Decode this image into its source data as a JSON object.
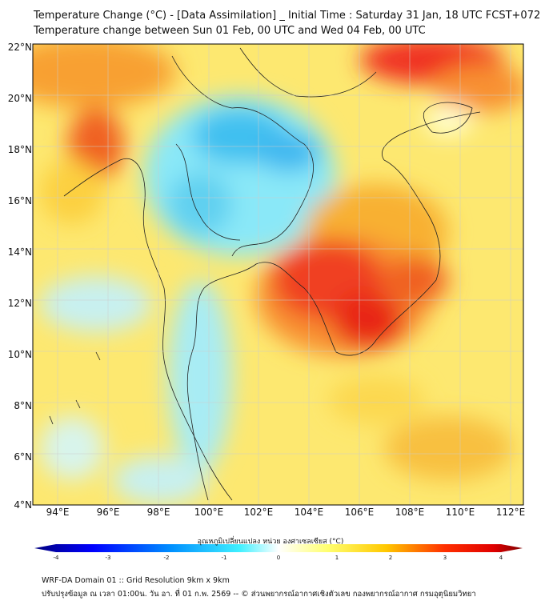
{
  "title": {
    "line1": "Temperature Change (°C) - [Data Assimilation] _ Initial Time : Saturday 31 Jan, 18 UTC FCST+072",
    "line2": "Temperature change between Sun 01 Feb, 00 UTC and Wed 04 Feb, 00 UTC"
  },
  "map": {
    "lat_labels": [
      "22°N",
      "20°N",
      "18°N",
      "16°N",
      "14°N",
      "12°N",
      "10°N",
      "8°N",
      "6°N",
      "4°N"
    ],
    "lon_labels": [
      "94°E",
      "96°E",
      "98°E",
      "100°E",
      "102°E",
      "104°E",
      "106°E",
      "108°E",
      "110°E",
      "112°E"
    ],
    "lat_range": [
      4,
      22
    ],
    "lon_range": [
      93,
      112.5
    ]
  },
  "colorbar": {
    "label": "อุณหภูมิเปลี่ยนแปลง หน่วย องศาเซลเซียส (°C)",
    "ticks": [
      "-4",
      "-3",
      "-2",
      "-1",
      "0",
      "1",
      "2",
      "3",
      "4"
    ],
    "range": [
      -4,
      4
    ],
    "colors": [
      "#00007f",
      "#0000ff",
      "#0080ff",
      "#33e0ff",
      "#ffffff",
      "#ffff66",
      "#ffc000",
      "#ff3000",
      "#ff0000",
      "#7f0000"
    ]
  },
  "footer": {
    "line1": "WRF-DA Domain 01 :: Grid Resolution 9km x 9km",
    "line2": "ปรับปรุงข้อมูล ณ เวลา 01:00น. วัน อา. ที่ 01 ก.พ. 2569 -- © ส่วนพยากรณ์อากาศเชิงตัวเลข กองพยากรณ์อากาศ กรมอุตุนิยมวิทยา"
  }
}
